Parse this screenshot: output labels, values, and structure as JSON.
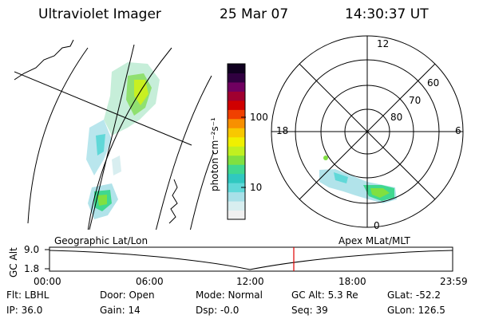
{
  "header": {
    "instrument": "Ultraviolet Imager",
    "date": "25 Mar 07",
    "time": "14:30:37 UT"
  },
  "colorbar": {
    "unit_label": "photon cm⁻²s⁻¹",
    "ticks": [
      "100",
      "10"
    ],
    "colors": [
      "#f0f0f0",
      "#d8eef0",
      "#a8e0e8",
      "#60d8d8",
      "#30c8c0",
      "#40d890",
      "#80e040",
      "#c0f020",
      "#f0f000",
      "#f8c800",
      "#f89000",
      "#f04000",
      "#d00000",
      "#a00030",
      "#700060",
      "#300040",
      "#100020"
    ]
  },
  "polar": {
    "mlt_labels": {
      "top": "12",
      "left": "18",
      "right": "6",
      "bottom": "0"
    },
    "lat_labels": [
      "60",
      "70",
      "80"
    ]
  },
  "timeline": {
    "left_label": "Geographic Lat/Lon",
    "right_label": "Apex MLat/MLT",
    "yaxis_label": "GC Alt",
    "y_ticks": [
      "9.0",
      "1.8"
    ],
    "x_ticks": [
      "00:00",
      "06:00",
      "12:00",
      "18:00",
      "23:59"
    ],
    "cursor_time": "14:30"
  },
  "status": {
    "flt": "Flt: LBHL",
    "ip": "IP: 36.0",
    "door": "Door: Open",
    "gain": "Gain: 14",
    "mode": "Mode: Normal",
    "dsp": "Dsp:  -0.0",
    "gc_alt": "GC Alt: 5.3 Re",
    "seq": "Seq: 39",
    "glat": "GLat: -52.2",
    "glon": "GLon: 126.5"
  }
}
